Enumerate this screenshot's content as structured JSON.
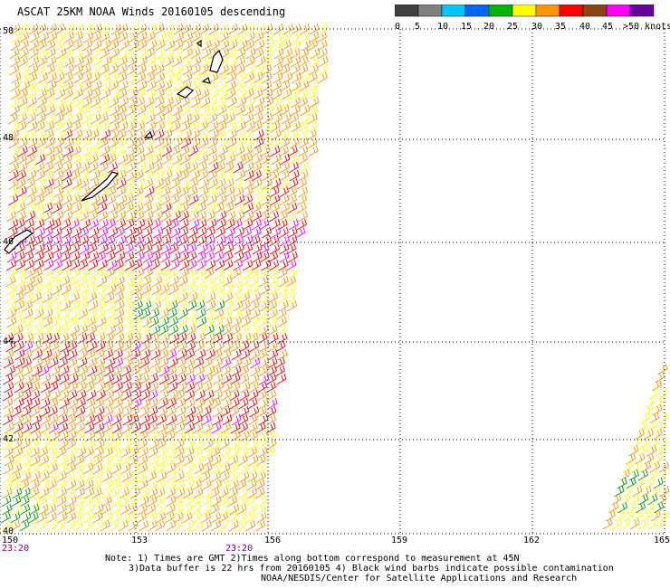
{
  "title": "ASCAT 25KM NOAA Winds 20160105 descending",
  "legend": {
    "labels": [
      "0",
      "5",
      "10",
      "15",
      "20",
      "25",
      "30",
      "35",
      "40",
      "45",
      ">50 knots"
    ],
    "colors": [
      "#404040",
      "#808080",
      "#00c8ff",
      "#0064ff",
      "#00b400",
      "#ffff00",
      "#ff9600",
      "#ff0000",
      "#8b4513",
      "#ff00ff",
      "#6a00a0"
    ]
  },
  "axes": {
    "lon_labels": [
      "150",
      "153",
      "156",
      "159",
      "162",
      "165"
    ],
    "lat_labels": [
      "50",
      "48",
      "46",
      "44",
      "42",
      "40"
    ]
  },
  "times": [
    "23:20",
    "23:20"
  ],
  "notes": [
    "Note: 1) Times are GMT 2)Times along bottom correspond to measurement at 45N",
    "3)Data buffer is 22 hrs from 20160105 4) Black wind barbs indicate possible contamination",
    "NOAA/NESDIS/Center for Satellite Applications and Research"
  ]
}
